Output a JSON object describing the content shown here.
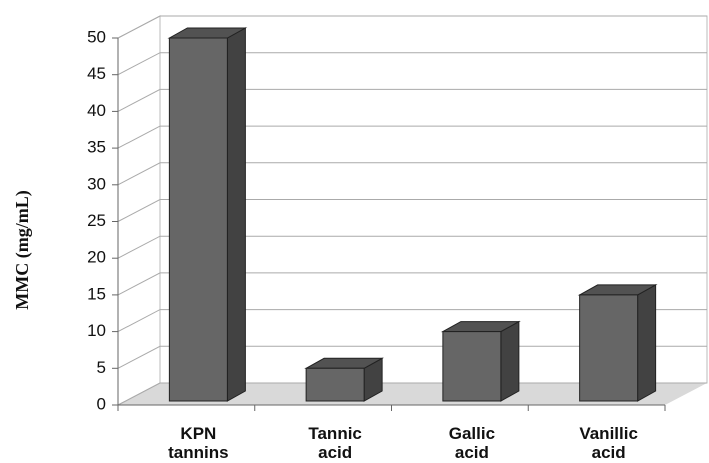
{
  "chart_data": {
    "type": "bar3d",
    "y_label": "MMC (mg/mL)",
    "categories": [
      "KPN tannins",
      "Tannic acid",
      "Gallic acid",
      "Vanillic acid"
    ],
    "values": [
      50,
      5,
      10,
      15
    ],
    "color": "#666666",
    "ylim": [
      0,
      50
    ],
    "yticks": [
      0,
      5,
      10,
      15,
      20,
      25,
      30,
      35,
      40,
      45,
      50
    ],
    "grid": true
  }
}
